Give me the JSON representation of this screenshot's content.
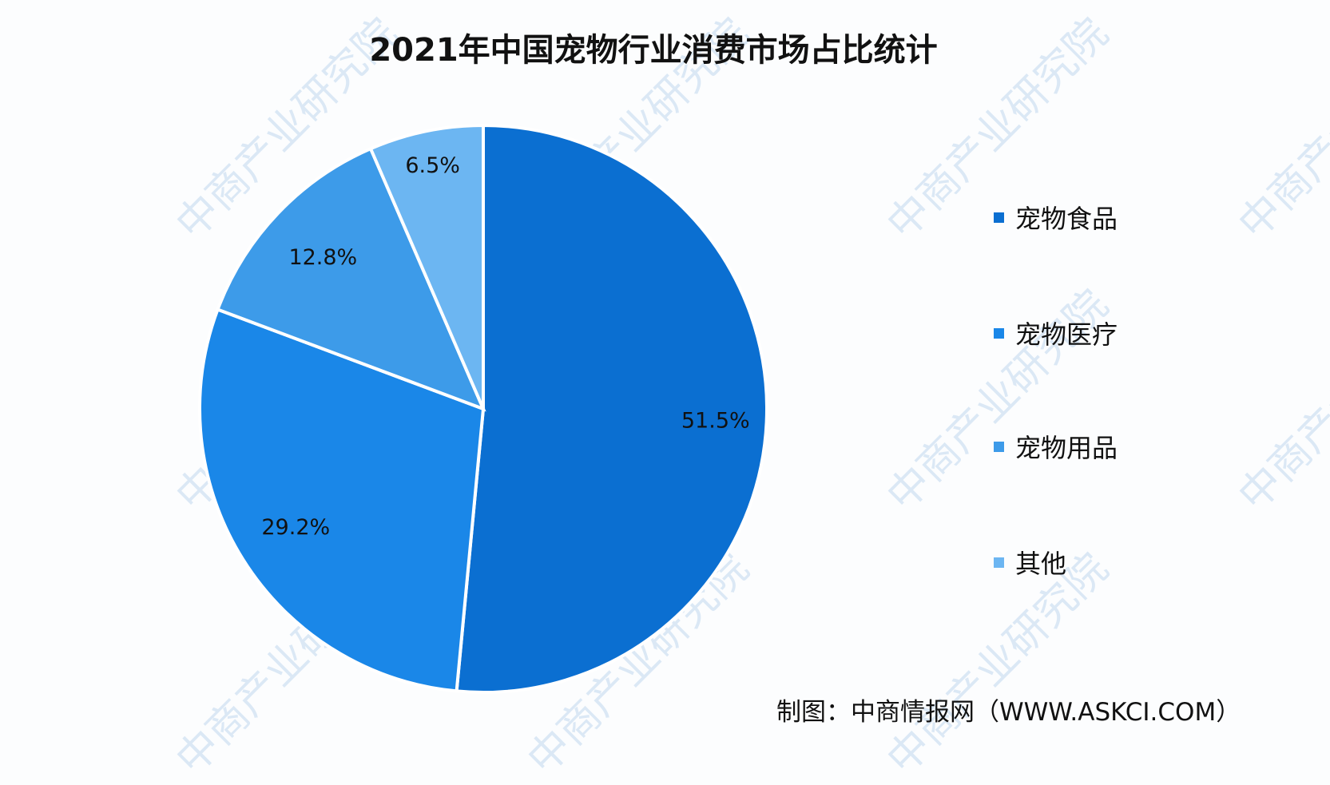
{
  "watermark": "中商产业研究院",
  "chart_data": {
    "type": "pie",
    "title": "2021年中国宠物行业消费市场占比统计",
    "start": "12 o'clock, clockwise",
    "legend_position": "right",
    "slices": [
      {
        "label": "宠物食品",
        "value": 51.5,
        "display": "51.5%",
        "color": "#0b6fd1"
      },
      {
        "label": "宠物医疗",
        "value": 29.2,
        "display": "29.2%",
        "color": "#1a87e8"
      },
      {
        "label": "宠物用品",
        "value": 12.8,
        "display": "12.8%",
        "color": "#3d9be9"
      },
      {
        "label": "其他",
        "value": 6.5,
        "display": "6.5%",
        "color": "#6cb6f2"
      }
    ]
  },
  "source": "制图：中商情报网（WWW.ASKCI.COM）"
}
